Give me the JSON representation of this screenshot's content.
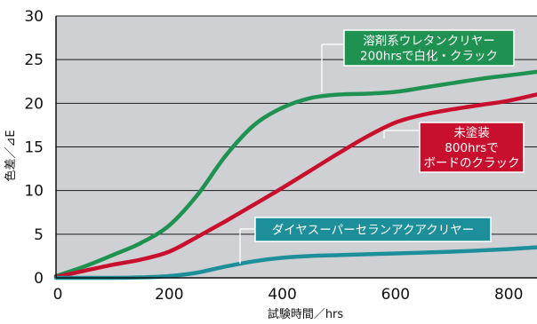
{
  "chart_data": {
    "type": "line",
    "xlabel": "試験時間／hrs",
    "ylabel": "色差／⊿E",
    "xlim": [
      0,
      850
    ],
    "ylim": [
      0,
      30
    ],
    "x_ticks": [
      0,
      200,
      400,
      600,
      800
    ],
    "y_ticks": [
      0,
      5,
      10,
      15,
      20,
      25,
      30
    ],
    "grid": "horizontal",
    "plot_background": "#cfd0d3",
    "series": [
      {
        "color": "#1f9252",
        "x": [
          0,
          50,
          100,
          150,
          200,
          250,
          300,
          350,
          400,
          450,
          500,
          550,
          600,
          650,
          700,
          750,
          800,
          850
        ],
        "y": [
          0.2,
          1.3,
          2.6,
          4.0,
          6.0,
          9.5,
          14.0,
          17.5,
          19.5,
          20.6,
          21.0,
          21.1,
          21.3,
          21.8,
          22.3,
          22.8,
          23.2,
          23.6
        ]
      },
      {
        "color": "#c8102e",
        "x": [
          0,
          50,
          100,
          150,
          200,
          250,
          300,
          350,
          400,
          450,
          500,
          550,
          600,
          650,
          700,
          750,
          800,
          850
        ],
        "y": [
          0.1,
          0.8,
          1.5,
          2.1,
          3.0,
          4.7,
          6.5,
          8.4,
          10.3,
          12.3,
          14.3,
          16.2,
          17.8,
          18.7,
          19.3,
          19.8,
          20.3,
          21.0
        ]
      },
      {
        "color": "#1d8f9b",
        "x": [
          0,
          100,
          150,
          200,
          250,
          300,
          350,
          400,
          450,
          500,
          600,
          700,
          800,
          850
        ],
        "y": [
          0.0,
          0.0,
          0.05,
          0.2,
          0.6,
          1.3,
          1.9,
          2.3,
          2.5,
          2.6,
          2.8,
          3.0,
          3.3,
          3.5
        ]
      }
    ],
    "annotations": [
      {
        "lines": [
          "溶剤系ウレタンクリヤー",
          "200hrsで白化・クラック"
        ],
        "color": "#1f9252"
      },
      {
        "lines": [
          "未塗装",
          "800hrsで",
          "ボードのクラック"
        ],
        "color": "#c8102e"
      },
      {
        "lines": [
          "ダイヤスーパーセランアクアクリヤー"
        ],
        "color": "#1d8f9b"
      }
    ]
  }
}
